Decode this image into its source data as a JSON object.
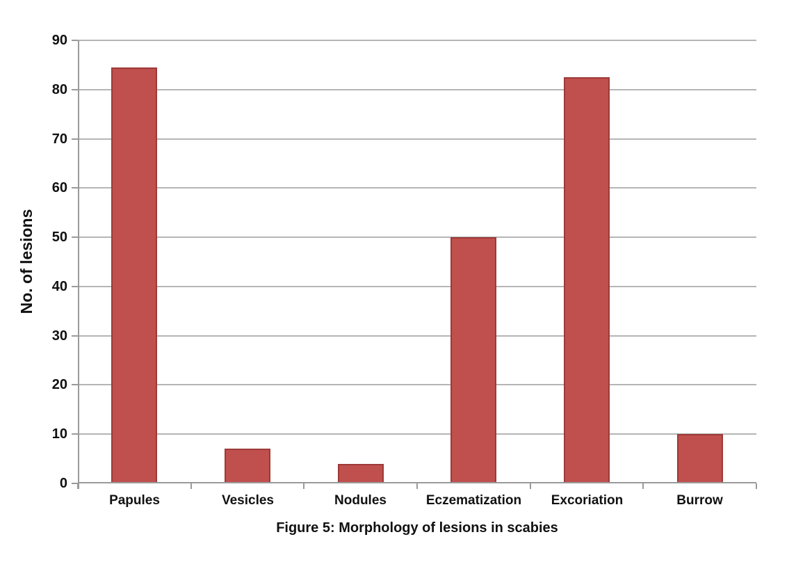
{
  "figure": {
    "caption": "Figure 5: Morphology of lesions in scabies"
  },
  "chart_data": {
    "type": "bar",
    "title": "Figure 5: Morphology of lesions in scabies",
    "categories": [
      "Papules",
      "Vesicles",
      "Nodules",
      "Eczematization",
      "Excoriation",
      "Burrow"
    ],
    "values": [
      84.5,
      7,
      4,
      50,
      82.5,
      10
    ],
    "xlabel": "",
    "ylabel": "No. of lesions",
    "ylim": [
      0,
      90
    ],
    "yticks": [
      0,
      10,
      20,
      30,
      40,
      50,
      60,
      70,
      80,
      90
    ],
    "grid": true,
    "legend": "none",
    "series_color": "#C0504D"
  },
  "colors": {
    "background": "#FFFFFF",
    "bar_fill": "#C0504D",
    "bar_border": "#9C3A38",
    "gridline": "#B5B5B5",
    "axis": "#9A9A9A",
    "text": "#111111"
  }
}
